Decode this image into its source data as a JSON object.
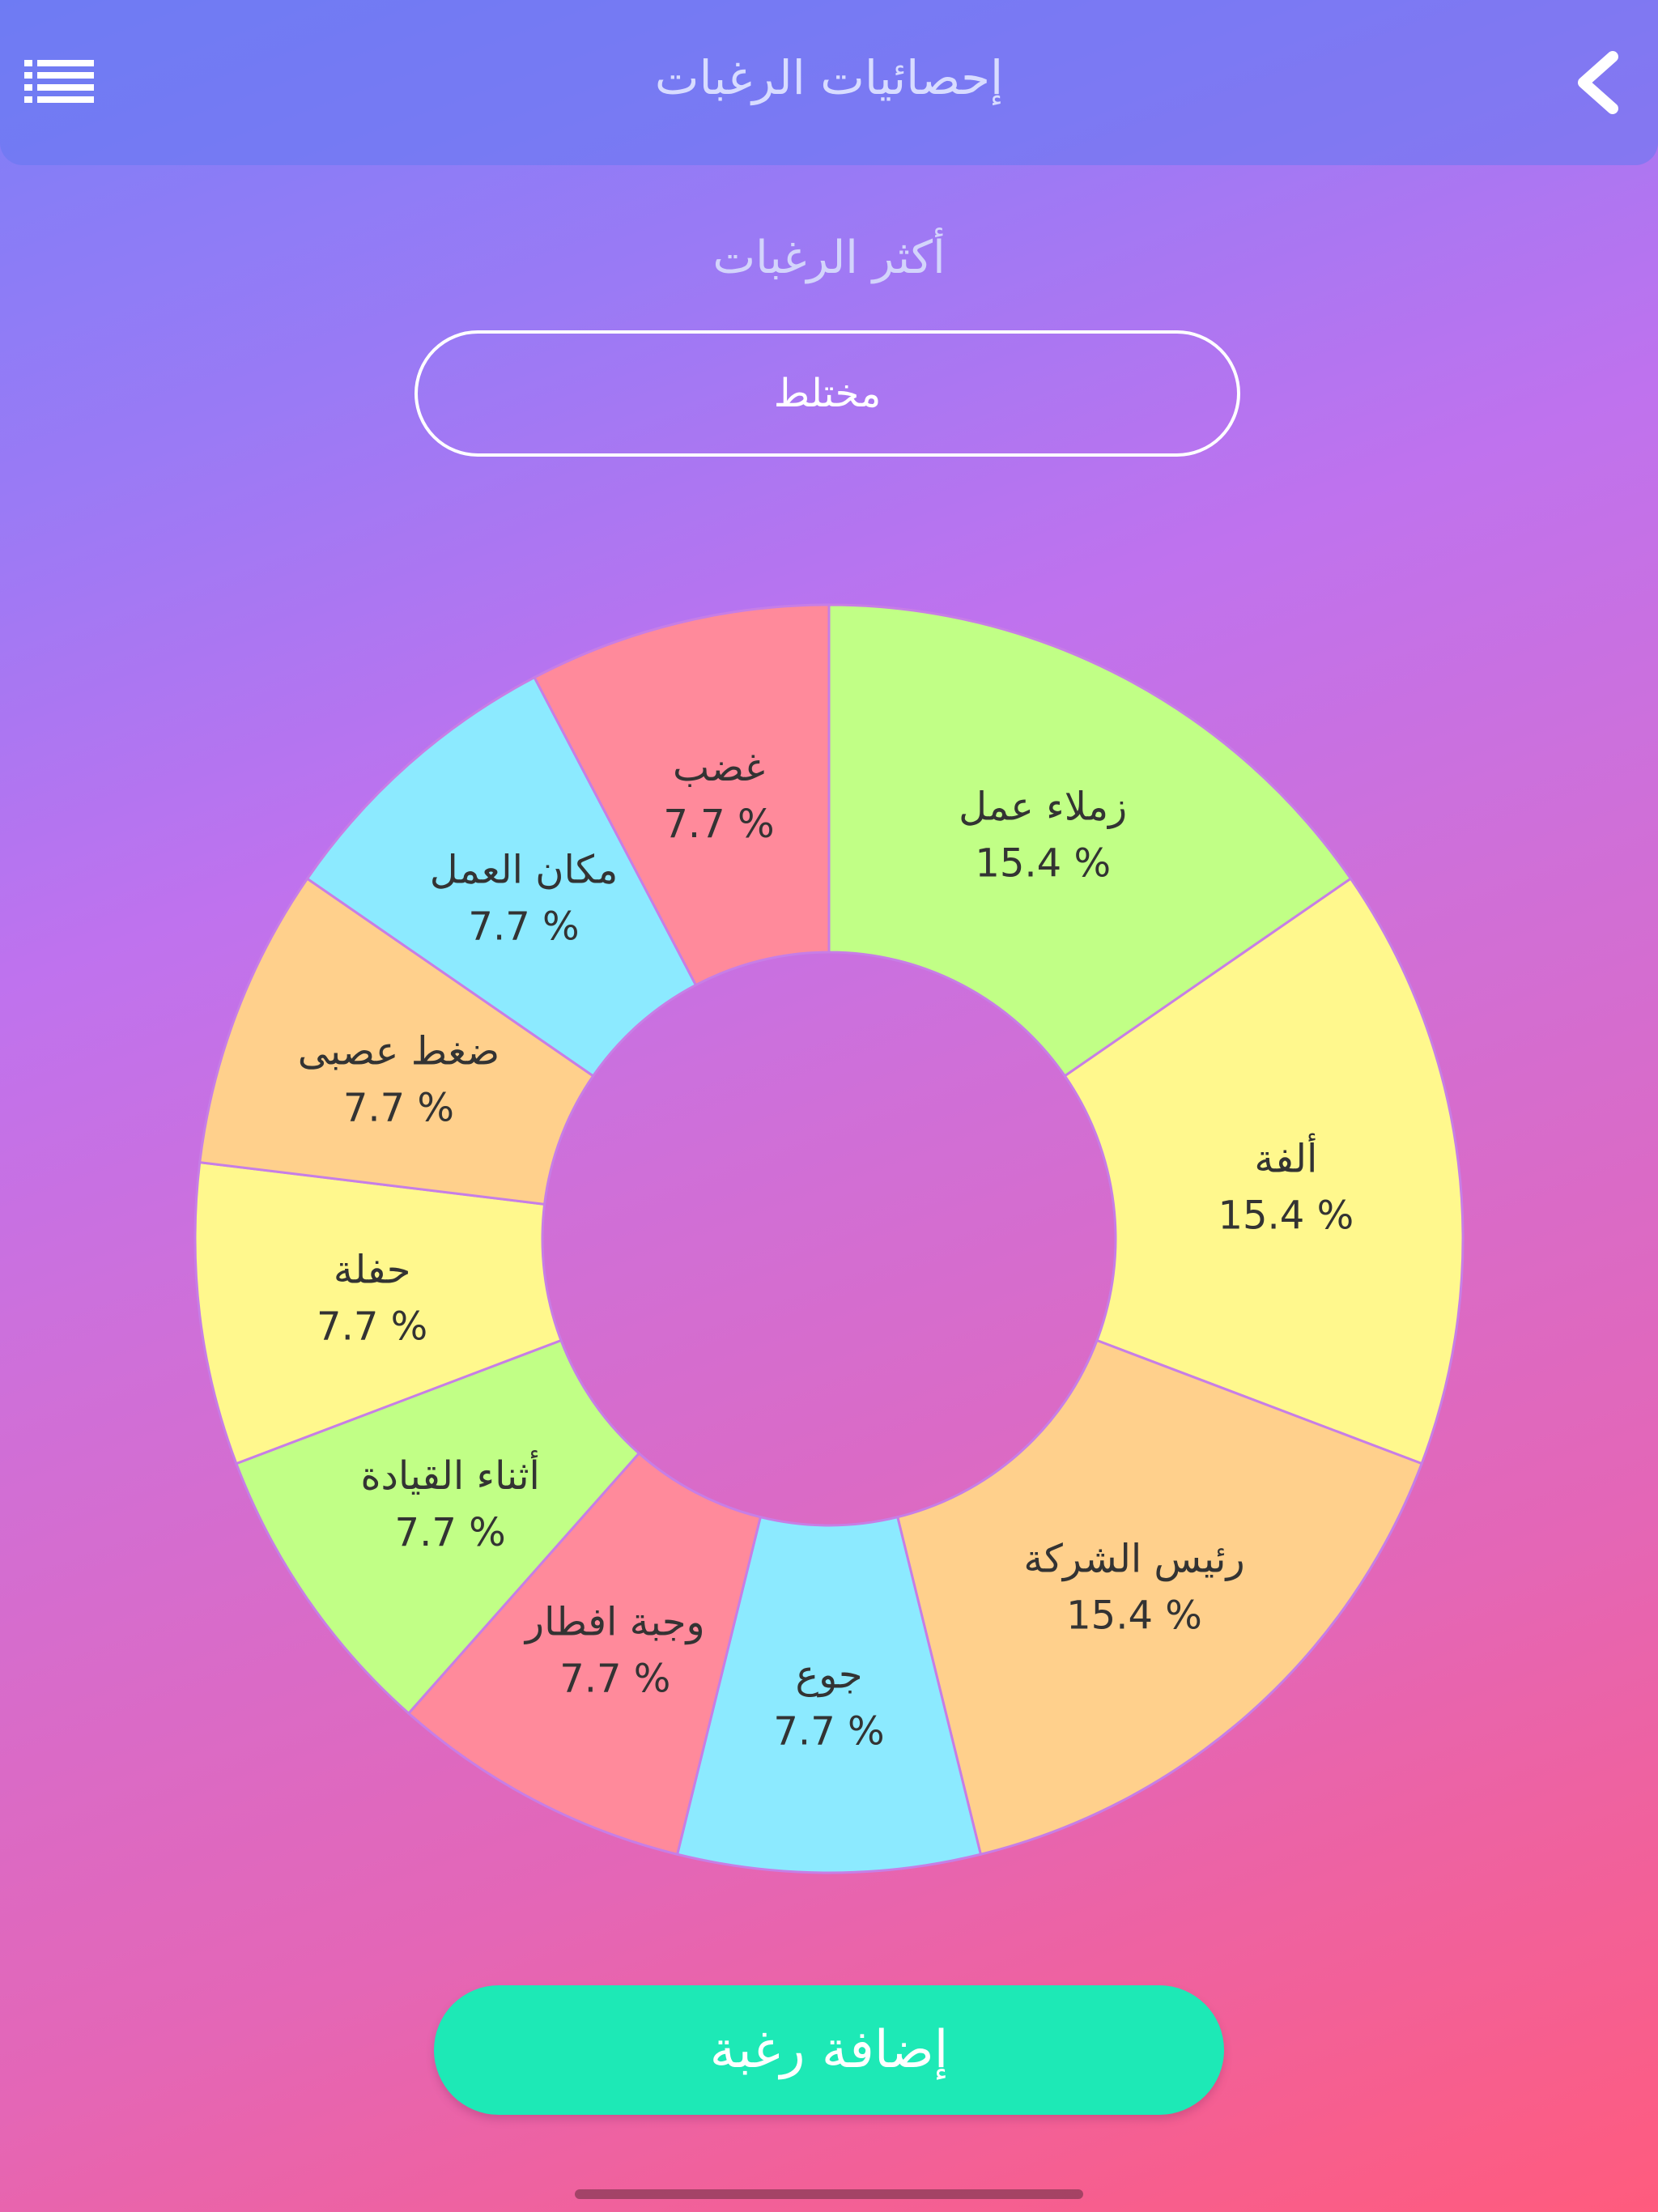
{
  "header": {
    "title": "إحصائيات الرغبات",
    "menu_icon": "list-icon",
    "back_icon": "chevron-left-icon"
  },
  "subtitle": "أكثر الرغبات",
  "selector": {
    "value": "مختلط"
  },
  "add_button": {
    "label": "إضافة رغبة"
  },
  "chart_data": {
    "type": "pie",
    "donut": true,
    "title": "",
    "slices": [
      {
        "label": "زملاء عمل",
        "value": 15.4,
        "value_label": "15.4 %",
        "color": "#c1ff86"
      },
      {
        "label": "ألفة",
        "value": 15.4,
        "value_label": "15.4 %",
        "color": "#fff88d"
      },
      {
        "label": "رئيس الشركة",
        "value": 15.4,
        "value_label": "15.4 %",
        "color": "#ffd08c"
      },
      {
        "label": "جوع",
        "value": 7.7,
        "value_label": "7.7 %",
        "color": "#8ceaff"
      },
      {
        "label": "وجبة افطار",
        "value": 7.7,
        "value_label": "7.7 %",
        "color": "#ff8a9b"
      },
      {
        "label": "أثناء القيادة",
        "value": 7.7,
        "value_label": "7.7 %",
        "color": "#c1ff86"
      },
      {
        "label": "حفلة",
        "value": 7.7,
        "value_label": "7.7 %",
        "color": "#fff88d"
      },
      {
        "label": "ضغط عصبى",
        "value": 7.7,
        "value_label": "7.7 %",
        "color": "#ffd08c"
      },
      {
        "label": "مكان العمل",
        "value": 7.7,
        "value_label": "7.7 %",
        "color": "#8ceaff"
      },
      {
        "label": "غضب",
        "value": 7.7,
        "value_label": "7.7 %",
        "color": "#ff8a9b"
      }
    ]
  },
  "colors": {
    "button": "#1de9b6",
    "slice_border": "#c77ee6",
    "label_text": "#333333"
  }
}
